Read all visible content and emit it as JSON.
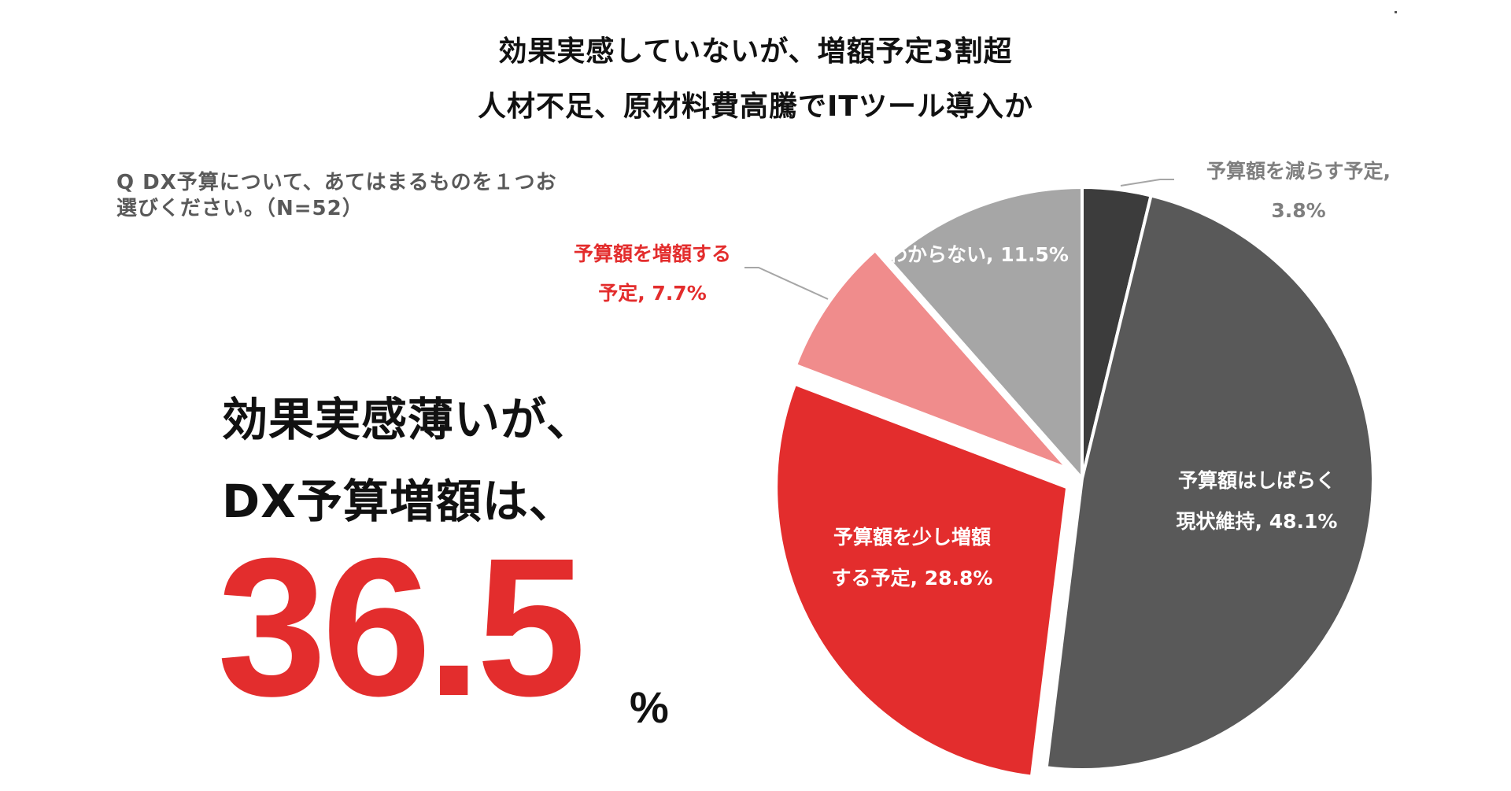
{
  "title": {
    "line1": "効果実感していないが、増額予定3割超",
    "line2": "人材不足、原材料費高騰でITツール導入か"
  },
  "question": {
    "line1": "Q DX予算について、あてはまるものを１つお",
    "line2": "選びください。（N=52）"
  },
  "summary": {
    "line1": "効果実感薄いが、",
    "line2": "DX予算増額は、",
    "value": "36.5",
    "unit": "%"
  },
  "colors": {
    "red": "#e32d2d",
    "pink": "#f08c8c",
    "light_gray": "#a6a6a6",
    "dark_gray": "#3c3c3c",
    "mid_gray": "#595959",
    "label_gray": "#7f7f7f"
  },
  "chart_data": {
    "type": "pie",
    "start": "12 o'clock",
    "direction": "clockwise",
    "exploded": [
      "予算額を少し増額する予定",
      "予算額を増額する予定"
    ],
    "slices": [
      {
        "label": "予算額を減らす予定",
        "value": 3.8,
        "text_lines": [
          "予算額を減らす予定,",
          "3.8%"
        ],
        "color": "#3c3c3c",
        "label_color": "#7f7f7f",
        "label_outside": true
      },
      {
        "label": "予算額はしばらく現状維持",
        "value": 48.1,
        "text_lines": [
          "予算額はしばらく",
          "現状維持, 48.1%"
        ],
        "color": "#595959",
        "label_color": "#ffffff",
        "label_outside": false
      },
      {
        "label": "予算額を少し増額する予定",
        "value": 28.8,
        "text_lines": [
          "予算額を少し増額",
          "する予定, 28.8%"
        ],
        "color": "#e32d2d",
        "label_color": "#ffffff",
        "label_outside": false
      },
      {
        "label": "予算額を増額する予定",
        "value": 7.7,
        "text_lines": [
          "予算額を増額する",
          "予定, 7.7%"
        ],
        "color": "#f08c8c",
        "label_color": "#e32d2d",
        "label_outside": true
      },
      {
        "label": "わからない",
        "value": 11.5,
        "text_lines": [
          "わからない, 11.5%"
        ],
        "color": "#a6a6a6",
        "label_color": "#ffffff",
        "label_outside": false
      }
    ]
  }
}
